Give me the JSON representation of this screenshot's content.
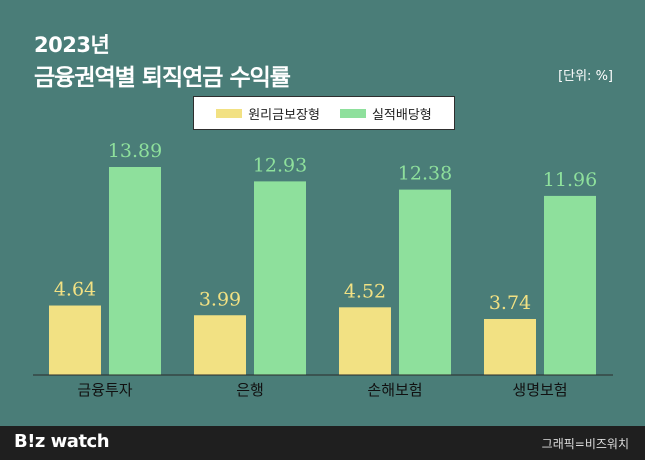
{
  "header": {
    "year_line": "2023년",
    "title": "금융권역별 퇴직연금 수익률",
    "unit": "[단위: %]"
  },
  "colors": {
    "background": "#4a7d78",
    "principal": "#f2e183",
    "performance": "#8ee09c",
    "footer": "#1f1f1f"
  },
  "chart_data": {
    "type": "bar",
    "categories": [
      "금융투자",
      "은행",
      "손해보험",
      "생명보험"
    ],
    "series": [
      {
        "name": "원리금보장형",
        "values": [
          4.64,
          3.99,
          4.52,
          3.74
        ]
      },
      {
        "name": "실적배당형",
        "values": [
          13.89,
          12.93,
          12.38,
          11.96
        ]
      }
    ],
    "value_labels": [
      [
        "4.64",
        "3.99",
        "4.52",
        "3.74"
      ],
      [
        "13.89",
        "12.93",
        "12.38",
        "11.96"
      ]
    ],
    "legend_position": "top-center",
    "grid": false
  },
  "footer": {
    "logo": "B!z watch",
    "credit": "그래픽=비즈워치"
  }
}
